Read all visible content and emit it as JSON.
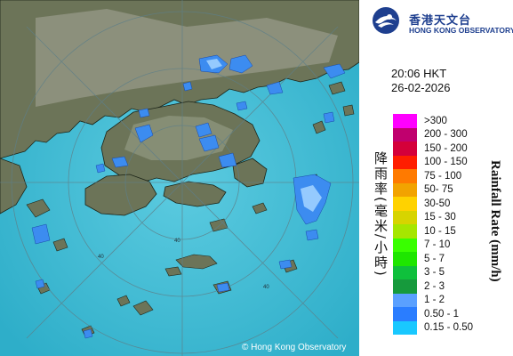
{
  "header": {
    "logo_icon": "hko-logo-icon",
    "org_name_zh": "香港天文台",
    "org_name_en": "HONG KONG OBSERVATORY"
  },
  "timestamp": {
    "time": "20:06 HKT",
    "date": "26-02-2026"
  },
  "legend": {
    "title_zh": "降雨率(毫米/小時)",
    "title_en": "Rainfall Rate (mm/h)",
    "items": [
      {
        "label": ">300",
        "color": "#ff00ff"
      },
      {
        "label": "200 - 300",
        "color": "#c0006e"
      },
      {
        "label": "150 - 200",
        "color": "#d4003a"
      },
      {
        "label": "100 - 150",
        "color": "#ff1e00"
      },
      {
        "label": "75 - 100",
        "color": "#ff7a00"
      },
      {
        "label": "50- 75",
        "color": "#f2a300"
      },
      {
        "label": "30-50",
        "color": "#ffd200"
      },
      {
        "label": "15 - 30",
        "color": "#d7d400"
      },
      {
        "label": "10 - 15",
        "color": "#a6e600"
      },
      {
        "label": "7 - 10",
        "color": "#39ff00"
      },
      {
        "label": "5 - 7",
        "color": "#1ee600"
      },
      {
        "label": "3 - 5",
        "color": "#0fc03c"
      },
      {
        "label": "2 - 3",
        "color": "#169a3c"
      },
      {
        "label": "1 - 2",
        "color": "#5aa0ff"
      },
      {
        "label": "0.50 - 1",
        "color": "#2a7dff"
      },
      {
        "label": "0.15 - 0.50",
        "color": "#19c8ff"
      }
    ]
  },
  "map": {
    "range_rings": [
      "40",
      "40",
      "40"
    ],
    "copyright": "© Hong Kong Observatory",
    "sea_color": "#4bc0d8",
    "land_color": "#6c7458",
    "echo_color": "#3c8cf0"
  }
}
